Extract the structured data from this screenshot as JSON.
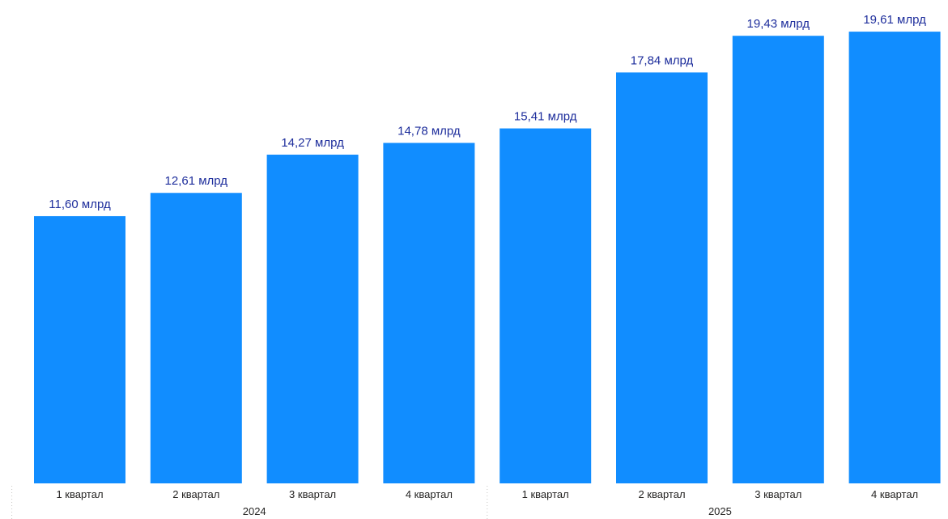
{
  "chart_data": {
    "type": "bar",
    "categories": [
      "1 квартал",
      "2 квартал",
      "3 квартал",
      "4 квартал",
      "1 квартал",
      "2 квартал",
      "3 квартал",
      "4 квартал"
    ],
    "groups": [
      {
        "label": "2024",
        "count": 4
      },
      {
        "label": "2025",
        "count": 4
      }
    ],
    "series": [
      {
        "values": [
          11.6,
          12.61,
          14.27,
          14.78,
          15.41,
          17.84,
          19.43,
          19.61
        ]
      }
    ],
    "data_labels": [
      "11,60 млрд",
      "12,61 млрд",
      "14,27 млрд",
      "14,78 млрд",
      "15,41 млрд",
      "17,84 млрд",
      "19,43 млрд",
      "19,61 млрд"
    ],
    "ylim": [
      0,
      21.0
    ],
    "grid": false,
    "legend": "none",
    "colors": {
      "bar": "#118DFF",
      "data_label": "#1E2E9C",
      "axis_text": "#252423",
      "separator": "#C8C6C4"
    }
  }
}
